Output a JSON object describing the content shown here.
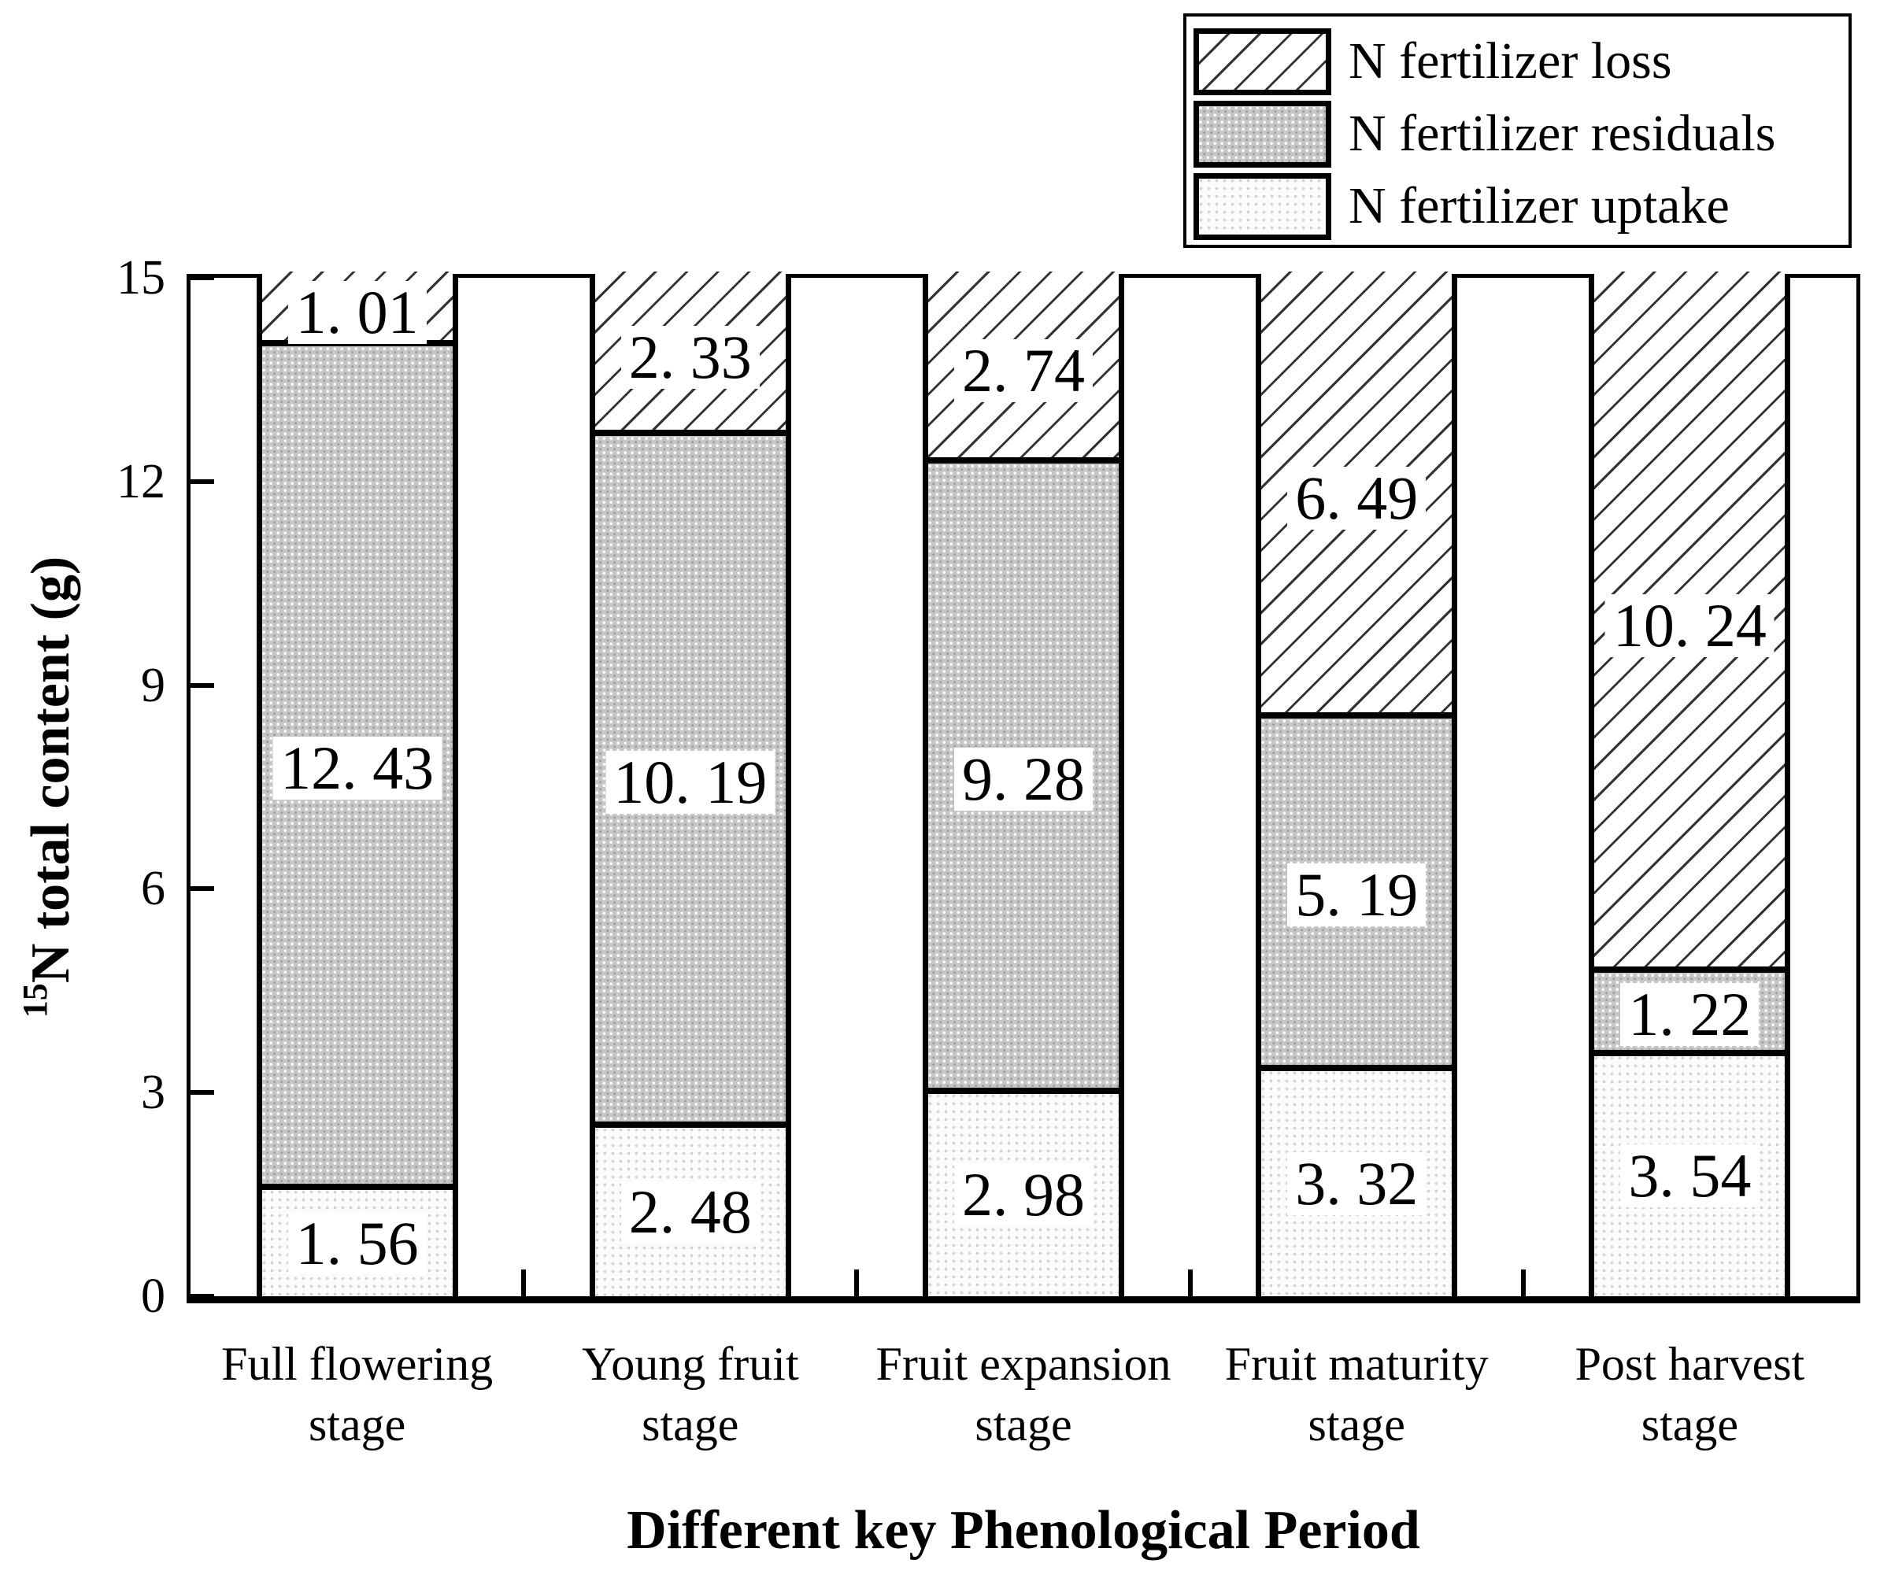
{
  "figure": {
    "background": "#ffffff",
    "ink_color": "#000000"
  },
  "legend": {
    "position": "top-right",
    "items": [
      {
        "label": "N fertilizer loss",
        "pattern": "diagonal-hatch"
      },
      {
        "label": "N fertilizer residuals",
        "pattern": "gray-dots"
      },
      {
        "label": "N fertilizer uptake",
        "pattern": "light-dots"
      }
    ]
  },
  "y_axis": {
    "title_superscript": "15",
    "title_text": "N total content (g)",
    "tick_labels": [
      "0",
      "3",
      "6",
      "9",
      "12",
      "15"
    ],
    "tick_values": [
      0,
      3,
      6,
      9,
      12,
      15
    ],
    "min": 0,
    "max": 15
  },
  "x_axis": {
    "title": "Different key Phenological Period",
    "categories": [
      {
        "lines": [
          "Full flowering",
          "stage"
        ]
      },
      {
        "lines": [
          "Young fruit",
          "stage"
        ]
      },
      {
        "lines": [
          "Fruit expansion",
          "stage"
        ]
      },
      {
        "lines": [
          "Fruit maturity",
          "stage"
        ]
      },
      {
        "lines": [
          "Post harvest",
          "stage"
        ]
      }
    ]
  },
  "chart_data": {
    "type": "bar",
    "stacked": true,
    "title": "",
    "xlabel": "Different key Phenological Period",
    "ylabel": "15N total content (g)",
    "ylim": [
      0,
      15
    ],
    "grid": false,
    "legend_position": "top-right",
    "categories": [
      "Full flowering stage",
      "Young fruit stage",
      "Fruit expansion stage",
      "Fruit maturity stage",
      "Post harvest stage"
    ],
    "series": [
      {
        "name": "N fertilizer uptake",
        "pattern": "light-dots",
        "values": [
          1.56,
          2.48,
          2.98,
          3.32,
          3.54
        ],
        "labels": [
          "1. 56",
          "2. 48",
          "2. 98",
          "3. 32",
          "3. 54"
        ]
      },
      {
        "name": "N fertilizer residuals",
        "pattern": "gray-dots",
        "values": [
          12.43,
          10.19,
          9.28,
          5.19,
          1.22
        ],
        "labels": [
          "12. 43",
          "10. 19",
          "9. 28",
          "5. 19",
          "1. 22"
        ]
      },
      {
        "name": "N fertilizer loss",
        "pattern": "diagonal-hatch",
        "values": [
          1.01,
          2.33,
          2.74,
          6.49,
          10.24
        ],
        "labels": [
          "1. 01",
          "2. 33",
          "2. 74",
          "6. 49",
          "10. 24"
        ]
      }
    ]
  }
}
